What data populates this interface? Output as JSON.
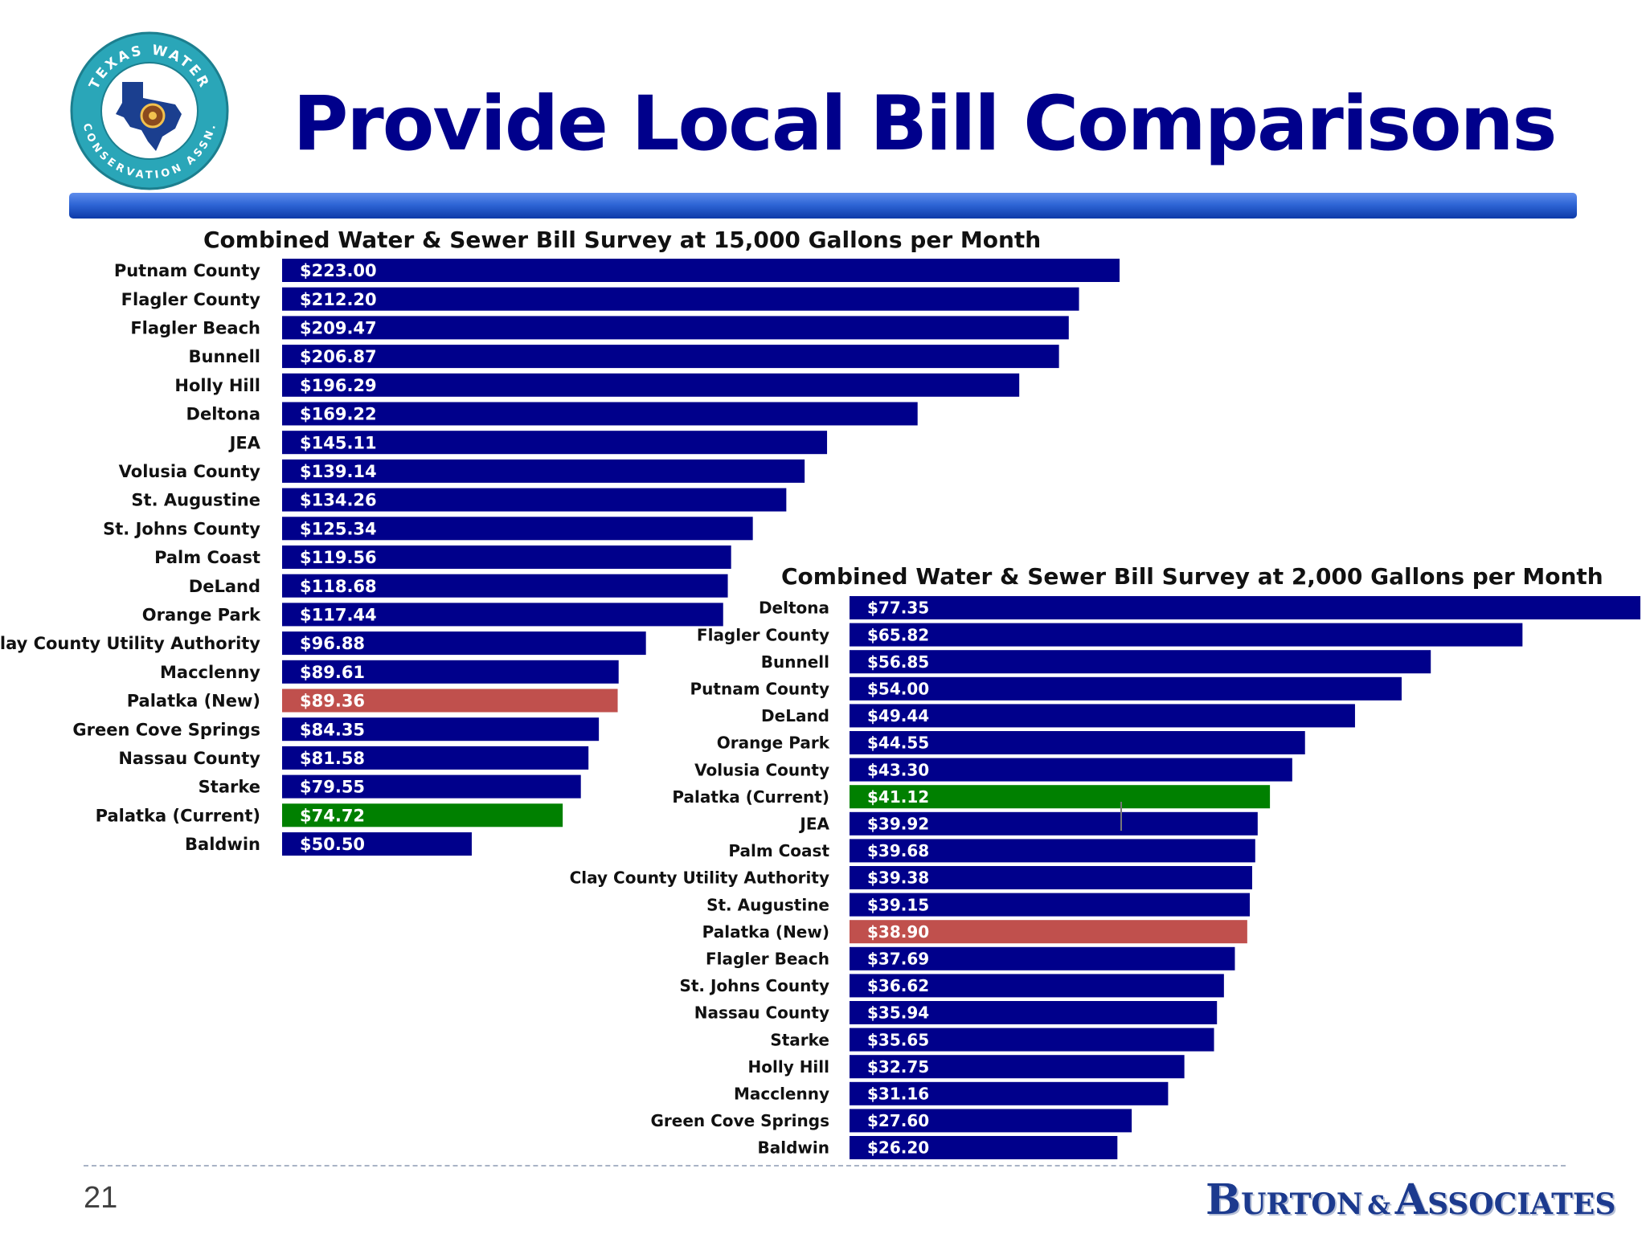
{
  "slide": {
    "title": "Provide Local Bill Comparisons",
    "page_number": "21",
    "logo_text_top": "TEXAS WATER",
    "logo_text_bottom": "CONSERVATION ASSN.",
    "brand_b": "B",
    "brand_urton": "URTON",
    "brand_amp": "&",
    "brand_a": "A",
    "brand_ssociates": "SSOCIATES"
  },
  "colors": {
    "title": "#00008b",
    "bar": "#00008b",
    "palatka_new": "#c0504d",
    "palatka_current": "#008000",
    "bar_label": "#ffffff",
    "category_label": "#111111"
  },
  "chart_data": [
    {
      "type": "bar",
      "orientation": "horizontal",
      "title": "Combined Water & Sewer Bill Survey at 15,000 Gallons per Month",
      "categories": [
        "Putnam County",
        "Flagler County",
        "Flagler Beach",
        "Bunnell",
        "Holly Hill",
        "Deltona",
        "JEA",
        "Volusia County",
        "St. Augustine",
        "St. Johns County",
        "Palm Coast",
        "DeLand",
        "Orange Park",
        "Clay County Utility Authority",
        "Macclenny",
        "Palatka (New)",
        "Green Cove Springs",
        "Nassau County",
        "Starke",
        "Palatka (Current)",
        "Baldwin"
      ],
      "values": [
        223.0,
        212.2,
        209.47,
        206.87,
        196.29,
        169.22,
        145.11,
        139.14,
        134.26,
        125.34,
        119.56,
        118.68,
        117.44,
        96.88,
        89.61,
        89.36,
        84.35,
        81.58,
        79.55,
        74.72,
        50.5
      ],
      "labels": [
        "$223.00",
        "$212.20",
        "$209.47",
        "$206.87",
        "$196.29",
        "$169.22",
        "$145.11",
        "$139.14",
        "$134.26",
        "$125.34",
        "$119.56",
        "$118.68",
        "$117.44",
        "$96.88",
        "$89.61",
        "$89.36",
        "$84.35",
        "$81.58",
        "$79.55",
        "$74.72",
        "$50.50"
      ],
      "highlight": {
        "Palatka (New)": "#c0504d",
        "Palatka (Current)": "#008000"
      },
      "xlim": [
        0,
        223
      ]
    },
    {
      "type": "bar",
      "orientation": "horizontal",
      "title": "Combined Water & Sewer Bill Survey at 2,000 Gallons per Month",
      "categories": [
        "Deltona",
        "Flagler County",
        "Bunnell",
        "Putnam County",
        "DeLand",
        "Orange Park",
        "Volusia County",
        "Palatka (Current)",
        "JEA",
        "Palm Coast",
        "Clay County Utility Authority",
        "St. Augustine",
        "Palatka (New)",
        "Flagler Beach",
        "St. Johns County",
        "Nassau County",
        "Starke",
        "Holly Hill",
        "Macclenny",
        "Green Cove Springs",
        "Baldwin"
      ],
      "values": [
        77.35,
        65.82,
        56.85,
        54.0,
        49.44,
        44.55,
        43.3,
        41.12,
        39.92,
        39.68,
        39.38,
        39.15,
        38.9,
        37.69,
        36.62,
        35.94,
        35.65,
        32.75,
        31.16,
        27.6,
        26.2
      ],
      "labels": [
        "$77.35",
        "$65.82",
        "$56.85",
        "$54.00",
        "$49.44",
        "$44.55",
        "$43.30",
        "$41.12",
        "$39.92",
        "$39.68",
        "$39.38",
        "$39.15",
        "$38.90",
        "$37.69",
        "$36.62",
        "$35.94",
        "$35.65",
        "$32.75",
        "$31.16",
        "$27.60",
        "$26.20"
      ],
      "highlight": {
        "Palatka (New)": "#c0504d",
        "Palatka (Current)": "#008000"
      },
      "xlim": [
        0,
        77.35
      ]
    }
  ]
}
